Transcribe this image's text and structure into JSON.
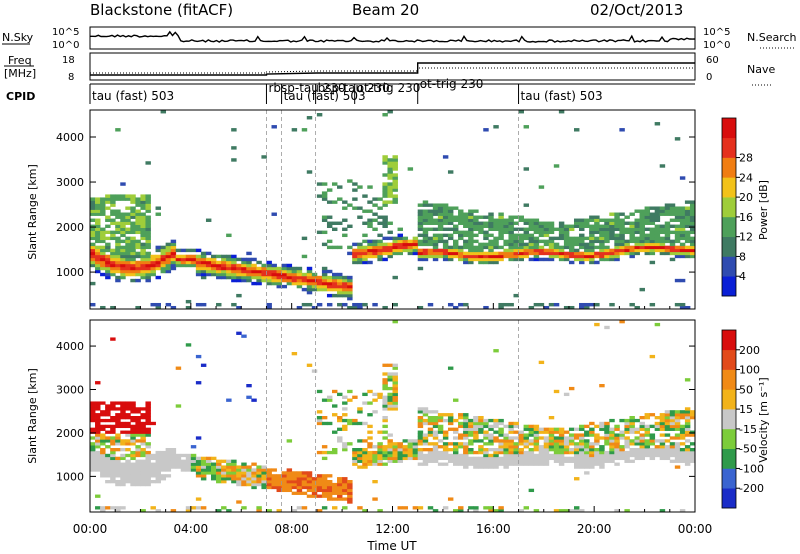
{
  "header": {
    "left": "Blackstone (fitACF)",
    "center": "Beam 20",
    "right": "02/Oct/2013"
  },
  "top_panels": {
    "nsky_label": "N.Sky",
    "nsky_ticks": [
      "10^5",
      "10^0"
    ],
    "nsearch_label": "N.Search",
    "nsearch_ticks": [
      "10^5",
      "10^0"
    ],
    "freq_label_1": "Freq",
    "freq_label_2": "[MHz]",
    "freq_ticks": [
      "18",
      "8"
    ],
    "nave_label": "Nave",
    "nave_ticks": [
      "60",
      "0"
    ],
    "cpid_label": "CPID"
  },
  "cpid_segments": [
    {
      "label": "tau (fast) 503",
      "start": 0.0
    },
    {
      "label": "rbsp-tau 230",
      "start": 7.0
    },
    {
      "label": "tau (fast) 503",
      "start": 7.6
    },
    {
      "label": "bsp-tau 230",
      "start": 8.95
    },
    {
      "label": "ot-trig 230",
      "start": 10.5
    },
    {
      "label": "ot-trig 230",
      "start": 13.0
    },
    {
      "label": "tau (fast) 503",
      "start": 17.0
    }
  ],
  "chart_data": [
    {
      "type": "heatmap",
      "name": "Power",
      "xlabel": "Time UT",
      "ylabel": "Slant Range [km]",
      "xlim": [
        0,
        24
      ],
      "ylim": [
        180,
        4600
      ],
      "y_ticks": [
        "1000",
        "2000",
        "3000",
        "4000"
      ],
      "colorbar_label": "Power [dB]",
      "colorbar_ticks": [
        "4",
        "8",
        "12",
        "16",
        "20",
        "24",
        "28"
      ],
      "colorbar_colors": [
        "#0a1fd6",
        "#2f4bb0",
        "#3f7a62",
        "#4ea05a",
        "#9fcd3a",
        "#f2c21a",
        "#f07d12",
        "#e5301d",
        "#d80d0d"
      ],
      "dashed_times": [
        7.0,
        7.6,
        8.95,
        17.0
      ]
    },
    {
      "type": "heatmap",
      "name": "Velocity",
      "xlabel": "Time UT",
      "ylabel": "Slant Range [km]",
      "xlim": [
        0,
        24
      ],
      "ylim": [
        180,
        4600
      ],
      "y_ticks": [
        "1000",
        "2000",
        "3000",
        "4000"
      ],
      "colorbar_label": "Velocity [m s⁻¹]",
      "colorbar_ticks": [
        "200",
        "100",
        "50",
        "15",
        "-15",
        "-50",
        "-100",
        "-200"
      ],
      "colorbar_colors": [
        "#1a2cc8",
        "#3a64d0",
        "#2f9a4a",
        "#7ccc3a",
        "#c8c8c8",
        "#f2b31a",
        "#f08a16",
        "#e24a1a",
        "#d80d0d"
      ],
      "dashed_times": [
        7.0,
        7.6,
        8.95,
        17.0
      ]
    }
  ],
  "x_ticks": [
    "00:00",
    "04:00",
    "08:00",
    "12:00",
    "16:00",
    "20:00",
    "00:00"
  ],
  "x_label": "Time UT"
}
